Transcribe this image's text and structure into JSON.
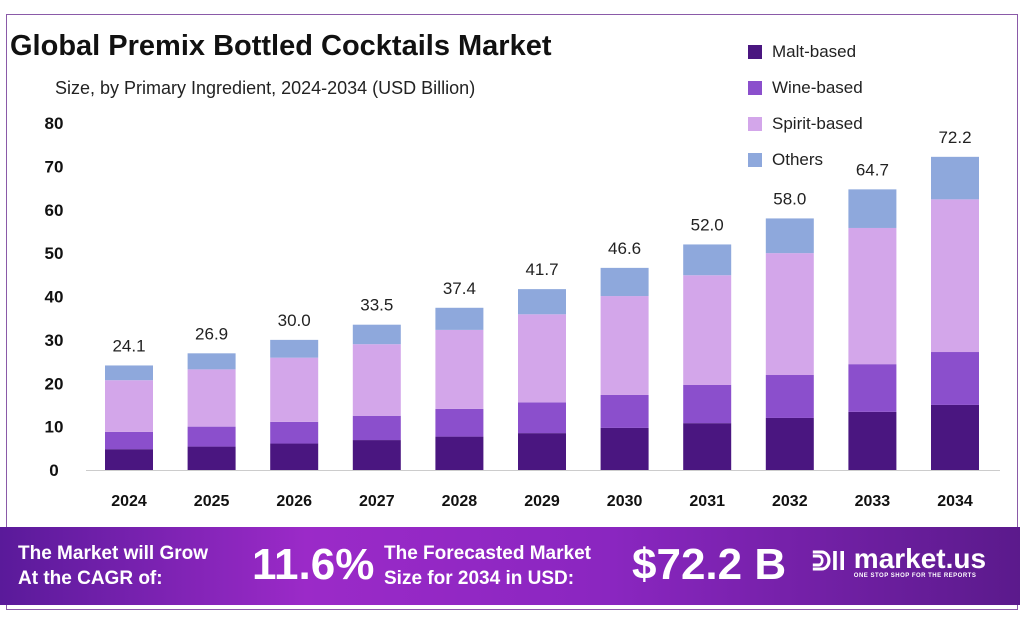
{
  "chart_data": {
    "type": "bar",
    "stacked": true,
    "title": "Global Premix Bottled Cocktails Market",
    "subtitle": "Size, by Primary Ingredient, 2024-2034 (USD Billion)",
    "categories": [
      "2024",
      "2025",
      "2026",
      "2027",
      "2028",
      "2029",
      "2030",
      "2031",
      "2032",
      "2033",
      "2034"
    ],
    "totals": [
      "24.1",
      "26.9",
      "30.0",
      "33.5",
      "37.4",
      "41.7",
      "46.6",
      "52.0",
      "58.0",
      "64.7",
      "72.2"
    ],
    "series": [
      {
        "name": "Malt-based",
        "color": "#4a1680",
        "values": [
          4.8,
          5.4,
          6.1,
          6.9,
          7.7,
          8.5,
          9.7,
          10.8,
          12.0,
          13.4,
          15.0
        ]
      },
      {
        "name": "Wine-based",
        "color": "#8b4fcc",
        "values": [
          4.0,
          4.6,
          5.0,
          5.6,
          6.4,
          7.1,
          7.6,
          8.8,
          9.9,
          11.0,
          12.2
        ]
      },
      {
        "name": "Spirit-based",
        "color": "#d3a6ea",
        "values": [
          11.9,
          13.2,
          14.8,
          16.5,
          18.2,
          20.3,
          22.8,
          25.3,
          28.1,
          31.4,
          35.2
        ]
      },
      {
        "name": "Others",
        "color": "#8ea8dc",
        "values": [
          3.4,
          3.7,
          4.1,
          4.5,
          5.1,
          5.8,
          6.5,
          7.1,
          8.0,
          8.9,
          9.8
        ]
      }
    ],
    "ylim": [
      0,
      80
    ],
    "yticks": [
      "0",
      "10",
      "20",
      "30",
      "40",
      "50",
      "60",
      "70",
      "80"
    ],
    "grid": false,
    "legend": "top-right"
  },
  "banner": {
    "cagr_label_1": "The Market will Grow",
    "cagr_label_2": "At the CAGR of:",
    "cagr_value": "11.6%",
    "forecast_label_1": "The Forecasted Market",
    "forecast_label_2": "Size for 2034 in USD:",
    "forecast_value": "$72.2 B",
    "logo_name": "market.us",
    "logo_tagline": "ONE STOP SHOP FOR THE REPORTS"
  }
}
